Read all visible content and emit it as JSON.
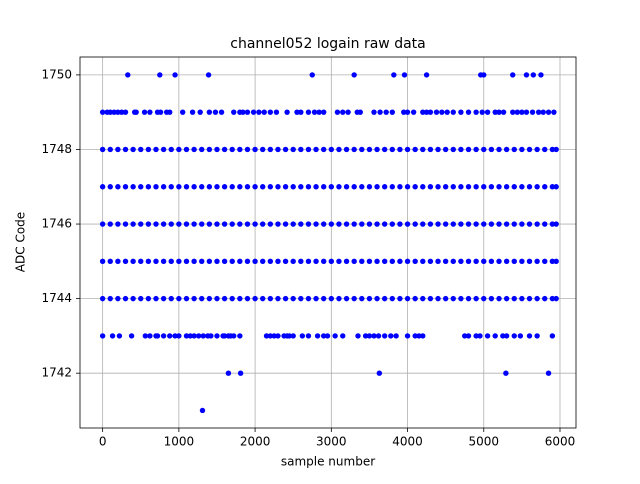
{
  "chart_data": {
    "type": "scatter",
    "title": "channel052 logain raw data",
    "x_label": "sample number",
    "y_label": "ADC Code",
    "xlim": [
      -297,
      6210
    ],
    "ylim": [
      1740.53,
      1750.48
    ],
    "xticks": [
      0,
      1000,
      2000,
      3000,
      4000,
      5000,
      6000
    ],
    "yticks": [
      1742,
      1744,
      1746,
      1748,
      1750
    ],
    "grid": true,
    "series": [
      {
        "color": "#0000ff",
        "x": [
          0,
          100,
          200,
          300,
          400,
          500,
          600,
          700,
          800,
          900,
          1000,
          1100,
          1200,
          1300,
          1400,
          1500,
          1600,
          1700,
          1800,
          1900,
          2000,
          2100,
          2200,
          2300,
          2400,
          2500,
          2600,
          2700,
          2800,
          2900,
          3000,
          3100,
          3200,
          3300,
          3400,
          3500,
          3600,
          3700,
          3800,
          3900,
          4000,
          4100,
          4200,
          4300,
          4400,
          4500,
          4600,
          4700,
          4800,
          4900,
          5000,
          5100,
          5200,
          5300,
          5400,
          5500,
          5600,
          5700,
          5800,
          5900,
          5950
        ],
        "values": [
          1744,
          1744,
          1744,
          1744,
          1744,
          1744,
          1744,
          1744,
          1744,
          1744,
          1744,
          1744,
          1744,
          1744,
          1744,
          1744,
          1744,
          1744,
          1744,
          1744,
          1744,
          1744,
          1744,
          1744,
          1744,
          1744,
          1744,
          1744,
          1744,
          1744,
          1744,
          1744,
          1744,
          1744,
          1744,
          1744,
          1744,
          1744,
          1744,
          1744,
          1744,
          1744,
          1744,
          1744,
          1744,
          1744,
          1744,
          1744,
          1744,
          1744,
          1744,
          1744,
          1744,
          1744,
          1744,
          1744,
          1744,
          1744,
          1744,
          1744,
          1744
        ]
      },
      {
        "color": "#0000ff",
        "x": [
          0,
          100,
          200,
          300,
          400,
          500,
          600,
          700,
          800,
          900,
          1000,
          1100,
          1200,
          1300,
          1400,
          1500,
          1600,
          1700,
          1800,
          1900,
          2000,
          2100,
          2200,
          2300,
          2400,
          2500,
          2600,
          2700,
          2800,
          2900,
          3000,
          3100,
          3200,
          3300,
          3400,
          3500,
          3600,
          3700,
          3800,
          3900,
          4000,
          4100,
          4200,
          4300,
          4400,
          4500,
          4600,
          4700,
          4800,
          4900,
          5000,
          5100,
          5200,
          5300,
          5400,
          5500,
          5600,
          5700,
          5800,
          5900,
          5950
        ],
        "values": [
          1745,
          1745,
          1745,
          1745,
          1745,
          1745,
          1745,
          1745,
          1745,
          1745,
          1745,
          1745,
          1745,
          1745,
          1745,
          1745,
          1745,
          1745,
          1745,
          1745,
          1745,
          1745,
          1745,
          1745,
          1745,
          1745,
          1745,
          1745,
          1745,
          1745,
          1745,
          1745,
          1745,
          1745,
          1745,
          1745,
          1745,
          1745,
          1745,
          1745,
          1745,
          1745,
          1745,
          1745,
          1745,
          1745,
          1745,
          1745,
          1745,
          1745,
          1745,
          1745,
          1745,
          1745,
          1745,
          1745,
          1745,
          1745,
          1745,
          1745,
          1745
        ]
      },
      {
        "color": "#0000ff",
        "x": [
          0,
          100,
          200,
          300,
          400,
          500,
          600,
          700,
          800,
          900,
          1000,
          1100,
          1200,
          1300,
          1400,
          1500,
          1600,
          1700,
          1800,
          1900,
          2000,
          2100,
          2200,
          2300,
          2400,
          2500,
          2600,
          2700,
          2800,
          2900,
          3000,
          3100,
          3200,
          3300,
          3400,
          3500,
          3600,
          3700,
          3800,
          3900,
          4000,
          4100,
          4200,
          4300,
          4400,
          4500,
          4600,
          4700,
          4800,
          4900,
          5000,
          5100,
          5200,
          5300,
          5400,
          5500,
          5600,
          5700,
          5800,
          5900,
          5950
        ],
        "values": [
          1746,
          1746,
          1746,
          1746,
          1746,
          1746,
          1746,
          1746,
          1746,
          1746,
          1746,
          1746,
          1746,
          1746,
          1746,
          1746,
          1746,
          1746,
          1746,
          1746,
          1746,
          1746,
          1746,
          1746,
          1746,
          1746,
          1746,
          1746,
          1746,
          1746,
          1746,
          1746,
          1746,
          1746,
          1746,
          1746,
          1746,
          1746,
          1746,
          1746,
          1746,
          1746,
          1746,
          1746,
          1746,
          1746,
          1746,
          1746,
          1746,
          1746,
          1746,
          1746,
          1746,
          1746,
          1746,
          1746,
          1746,
          1746,
          1746,
          1746,
          1746
        ]
      },
      {
        "color": "#0000ff",
        "x": [
          0,
          100,
          200,
          300,
          400,
          500,
          600,
          700,
          800,
          900,
          1000,
          1100,
          1200,
          1300,
          1400,
          1500,
          1600,
          1700,
          1800,
          1900,
          2000,
          2100,
          2200,
          2300,
          2400,
          2500,
          2600,
          2700,
          2800,
          2900,
          3000,
          3100,
          3200,
          3300,
          3400,
          3500,
          3600,
          3700,
          3800,
          3900,
          4000,
          4100,
          4200,
          4300,
          4400,
          4500,
          4600,
          4700,
          4800,
          4900,
          5000,
          5100,
          5200,
          5300,
          5400,
          5500,
          5600,
          5700,
          5800,
          5900,
          5950
        ],
        "values": [
          1747,
          1747,
          1747,
          1747,
          1747,
          1747,
          1747,
          1747,
          1747,
          1747,
          1747,
          1747,
          1747,
          1747,
          1747,
          1747,
          1747,
          1747,
          1747,
          1747,
          1747,
          1747,
          1747,
          1747,
          1747,
          1747,
          1747,
          1747,
          1747,
          1747,
          1747,
          1747,
          1747,
          1747,
          1747,
          1747,
          1747,
          1747,
          1747,
          1747,
          1747,
          1747,
          1747,
          1747,
          1747,
          1747,
          1747,
          1747,
          1747,
          1747,
          1747,
          1747,
          1747,
          1747,
          1747,
          1747,
          1747,
          1747,
          1747,
          1747,
          1747
        ]
      },
      {
        "color": "#0000ff",
        "x": [
          0,
          100,
          200,
          300,
          400,
          500,
          600,
          700,
          800,
          900,
          1000,
          1100,
          1200,
          1300,
          1400,
          1500,
          1600,
          1700,
          1800,
          1900,
          2000,
          2100,
          2200,
          2300,
          2400,
          2500,
          2600,
          2700,
          2800,
          2900,
          3000,
          3100,
          3200,
          3300,
          3400,
          3500,
          3600,
          3700,
          3800,
          3900,
          4000,
          4100,
          4200,
          4300,
          4400,
          4500,
          4600,
          4700,
          4800,
          4900,
          5000,
          5100,
          5200,
          5300,
          5400,
          5500,
          5600,
          5700,
          5800,
          5900,
          5950
        ],
        "values": [
          1748,
          1748,
          1748,
          1748,
          1748,
          1748,
          1748,
          1748,
          1748,
          1748,
          1748,
          1748,
          1748,
          1748,
          1748,
          1748,
          1748,
          1748,
          1748,
          1748,
          1748,
          1748,
          1748,
          1748,
          1748,
          1748,
          1748,
          1748,
          1748,
          1748,
          1748,
          1748,
          1748,
          1748,
          1748,
          1748,
          1748,
          1748,
          1748,
          1748,
          1748,
          1748,
          1748,
          1748,
          1748,
          1748,
          1748,
          1748,
          1748,
          1748,
          1748,
          1748,
          1748,
          1748,
          1748,
          1748,
          1748,
          1748,
          1748,
          1748,
          1748
        ]
      },
      {
        "color": "#0000ff",
        "x": [
          0,
          60,
          100,
          150,
          200,
          250,
          300,
          420,
          440,
          550,
          620,
          720,
          760,
          840,
          880,
          1050,
          1180,
          1280,
          1400,
          1480,
          1560,
          1720,
          1800,
          1840,
          1900,
          1980,
          2050,
          2120,
          2200,
          2280,
          2420,
          2550,
          2600,
          2700,
          2780,
          2840,
          2900,
          3080,
          3150,
          3220,
          3340,
          3380,
          3560,
          3640,
          3720,
          3800,
          3950,
          4000,
          4080,
          4200,
          4250,
          4300,
          4380,
          4450,
          4520,
          4600,
          4700,
          4800,
          4900,
          4980,
          5050,
          5150,
          5200,
          5260,
          5380,
          5440,
          5500,
          5560,
          5640,
          5720,
          5780,
          5850,
          5920
        ],
        "values": [
          1749,
          1749,
          1749,
          1749,
          1749,
          1749,
          1749,
          1749,
          1749,
          1749,
          1749,
          1749,
          1749,
          1749,
          1749,
          1749,
          1749,
          1749,
          1749,
          1749,
          1749,
          1749,
          1749,
          1749,
          1749,
          1749,
          1749,
          1749,
          1749,
          1749,
          1749,
          1749,
          1749,
          1749,
          1749,
          1749,
          1749,
          1749,
          1749,
          1749,
          1749,
          1749,
          1749,
          1749,
          1749,
          1749,
          1749,
          1749,
          1749,
          1749,
          1749,
          1749,
          1749,
          1749,
          1749,
          1749,
          1749,
          1749,
          1749,
          1749,
          1749,
          1749,
          1749,
          1749,
          1749,
          1749,
          1749,
          1749,
          1749,
          1749,
          1749,
          1749,
          1749
        ]
      },
      {
        "color": "#0000ff",
        "x": [
          330,
          750,
          950,
          1390,
          2750,
          3300,
          3820,
          3960,
          4250,
          4960,
          5000,
          5380,
          5560,
          5650,
          5750
        ],
        "values": [
          1750,
          1750,
          1750,
          1750,
          1750,
          1750,
          1750,
          1750,
          1750,
          1750,
          1750,
          1750,
          1750,
          1750,
          1750
        ]
      },
      {
        "color": "#0000ff",
        "x": [
          0,
          130,
          220,
          380,
          560,
          620,
          700,
          720,
          800,
          880,
          950,
          1000,
          1100,
          1150,
          1200,
          1260,
          1320,
          1380,
          1420,
          1500,
          1580,
          1600,
          1650,
          1680,
          1720,
          1800,
          2150,
          2200,
          2250,
          2300,
          2380,
          2420,
          2450,
          2500,
          2620,
          2700,
          2820,
          2900,
          2950,
          3050,
          3150,
          3350,
          3450,
          3500,
          3560,
          3620,
          3700,
          3780,
          3850,
          4000,
          4100,
          4150,
          4200,
          4750,
          4800,
          4900,
          4950,
          5050,
          5150,
          5250,
          5300,
          5400,
          5480,
          5600,
          5700,
          5900
        ],
        "values": [
          1743,
          1743,
          1743,
          1743,
          1743,
          1743,
          1743,
          1743,
          1743,
          1743,
          1743,
          1743,
          1743,
          1743,
          1743,
          1743,
          1743,
          1743,
          1743,
          1743,
          1743,
          1743,
          1743,
          1743,
          1743,
          1743,
          1743,
          1743,
          1743,
          1743,
          1743,
          1743,
          1743,
          1743,
          1743,
          1743,
          1743,
          1743,
          1743,
          1743,
          1743,
          1743,
          1743,
          1743,
          1743,
          1743,
          1743,
          1743,
          1743,
          1743,
          1743,
          1743,
          1743,
          1743,
          1743,
          1743,
          1743,
          1743,
          1743,
          1743,
          1743,
          1743,
          1743,
          1743,
          1743,
          1743
        ]
      },
      {
        "color": "#0000ff",
        "x": [
          1650,
          1810,
          3630,
          5290,
          5850
        ],
        "values": [
          1742,
          1742,
          1742,
          1742,
          1742
        ]
      },
      {
        "color": "#0000ff",
        "x": [
          1310
        ],
        "values": [
          1741
        ]
      }
    ]
  }
}
